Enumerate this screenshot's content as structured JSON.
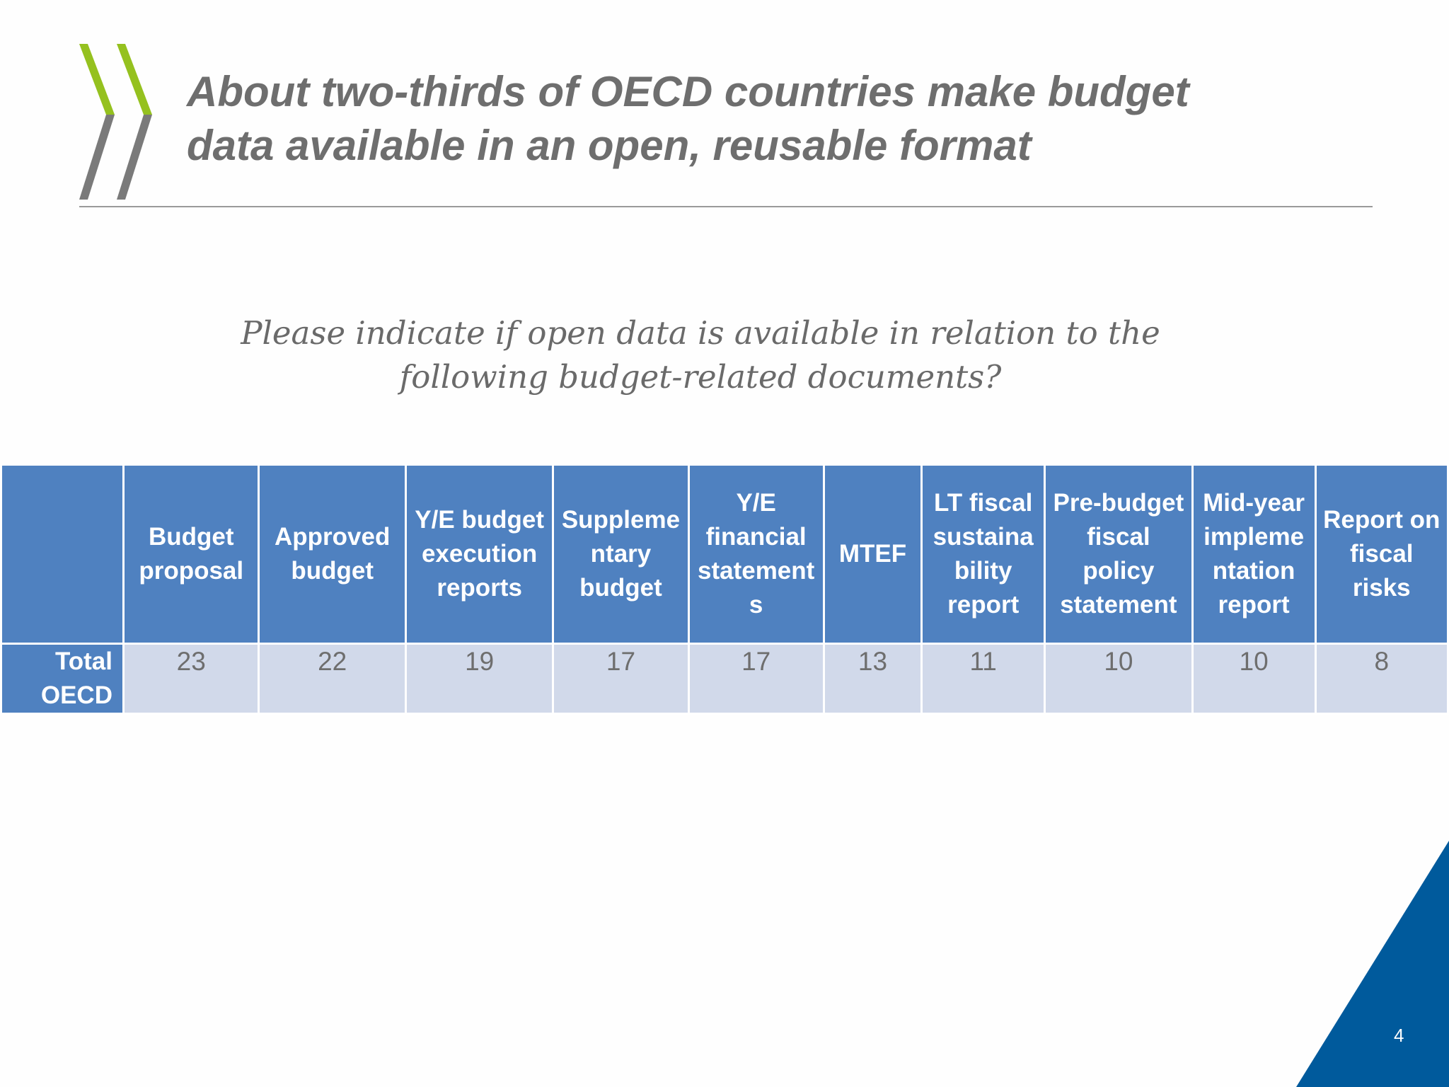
{
  "slide": {
    "title_line1": "About two-thirds of OECD countries make budget",
    "title_line2": "data available in an open, reusable format",
    "question_line1": "Please indicate if open data is available in relation to the",
    "question_line2": "following budget-related documents?",
    "page_number": "4"
  },
  "colors": {
    "header_blue": "#4f81c0",
    "cell_light": "#d1d9ea",
    "title_grey": "#6e6e6e",
    "logo_green": "#95c11f",
    "logo_grey": "#7a7a7a",
    "corner_blue": "#005a9c"
  },
  "table": {
    "columns": [
      [
        "Budget",
        "proposal"
      ],
      [
        "Approved",
        "budget"
      ],
      [
        "Y/E budget",
        "execution",
        "reports"
      ],
      [
        "Suppleme",
        "ntary",
        "budget"
      ],
      [
        "Y/E",
        "financial",
        "statement",
        "s"
      ],
      [
        "MTEF"
      ],
      [
        "LT fiscal",
        "sustaina",
        "bility",
        "report"
      ],
      [
        "Pre-budget",
        "fiscal",
        "policy",
        "statement"
      ],
      [
        "Mid-year",
        "impleme",
        "ntation",
        "report"
      ],
      [
        "Report on",
        "fiscal",
        "risks"
      ]
    ],
    "row_label": [
      "Total",
      "OECD"
    ],
    "values": [
      23,
      22,
      19,
      17,
      17,
      13,
      11,
      10,
      10,
      8
    ]
  }
}
